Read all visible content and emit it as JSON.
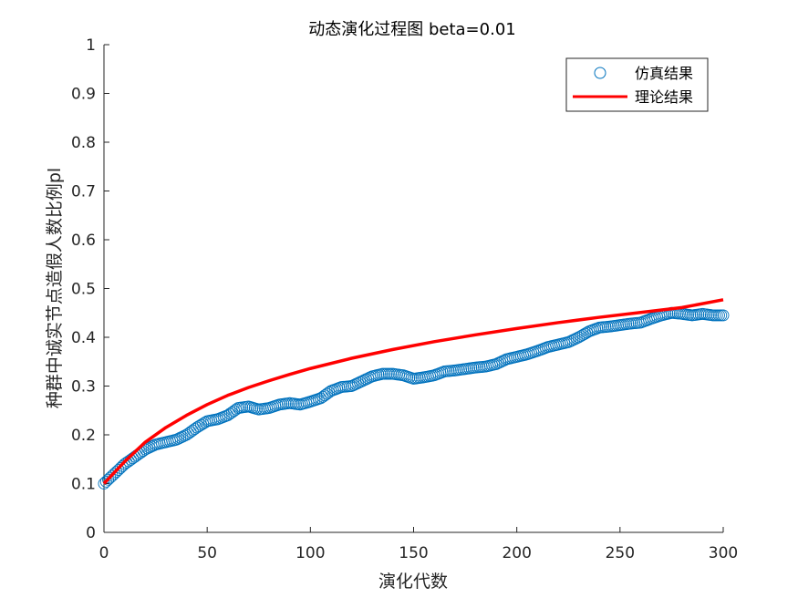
{
  "chart_data": {
    "type": "scatter",
    "title": "动态演化过程图 beta=0.01",
    "xlabel": "演化代数",
    "ylabel": "种群中诚实节点造假人数比例pl",
    "xlim": [
      0,
      300
    ],
    "ylim": [
      0,
      1
    ],
    "xticks": [
      "0",
      "50",
      "100",
      "150",
      "200",
      "250",
      "300"
    ],
    "yticks": [
      "0",
      "0.1",
      "0.2",
      "0.3",
      "0.4",
      "0.5",
      "0.6",
      "0.7",
      "0.8",
      "0.9",
      "1"
    ],
    "legend_position": "top-right",
    "grid": false,
    "series": [
      {
        "name": "仿真结果",
        "kind": "scatter",
        "marker": "circle",
        "color": "#0072BD",
        "x": [
          0,
          10,
          20,
          25,
          30,
          35,
          40,
          45,
          50,
          55,
          60,
          65,
          70,
          75,
          80,
          85,
          90,
          95,
          100,
          105,
          110,
          115,
          120,
          125,
          130,
          135,
          140,
          145,
          150,
          155,
          160,
          165,
          170,
          175,
          180,
          185,
          190,
          195,
          200,
          205,
          210,
          215,
          220,
          225,
          230,
          235,
          240,
          245,
          250,
          255,
          260,
          265,
          270,
          275,
          280,
          285,
          290,
          295,
          300
        ],
        "y": [
          0.1,
          0.14,
          0.17,
          0.18,
          0.185,
          0.19,
          0.2,
          0.215,
          0.228,
          0.232,
          0.24,
          0.255,
          0.258,
          0.252,
          0.255,
          0.262,
          0.265,
          0.262,
          0.268,
          0.275,
          0.29,
          0.298,
          0.3,
          0.31,
          0.32,
          0.325,
          0.325,
          0.322,
          0.315,
          0.318,
          0.322,
          0.33,
          0.332,
          0.335,
          0.338,
          0.34,
          0.345,
          0.355,
          0.36,
          0.365,
          0.372,
          0.38,
          0.385,
          0.39,
          0.4,
          0.412,
          0.42,
          0.422,
          0.425,
          0.428,
          0.43,
          0.438,
          0.445,
          0.45,
          0.448,
          0.445,
          0.448,
          0.445,
          0.445
        ]
      },
      {
        "name": "理论结果",
        "kind": "line",
        "color": "#FF0000",
        "x": [
          0,
          10,
          20,
          30,
          40,
          50,
          60,
          70,
          80,
          90,
          100,
          120,
          140,
          160,
          180,
          200,
          220,
          240,
          260,
          280,
          300
        ],
        "y": [
          0.1,
          0.145,
          0.185,
          0.215,
          0.24,
          0.262,
          0.281,
          0.297,
          0.311,
          0.324,
          0.336,
          0.357,
          0.375,
          0.391,
          0.405,
          0.418,
          0.43,
          0.441,
          0.451,
          0.461,
          0.477
        ]
      }
    ]
  }
}
